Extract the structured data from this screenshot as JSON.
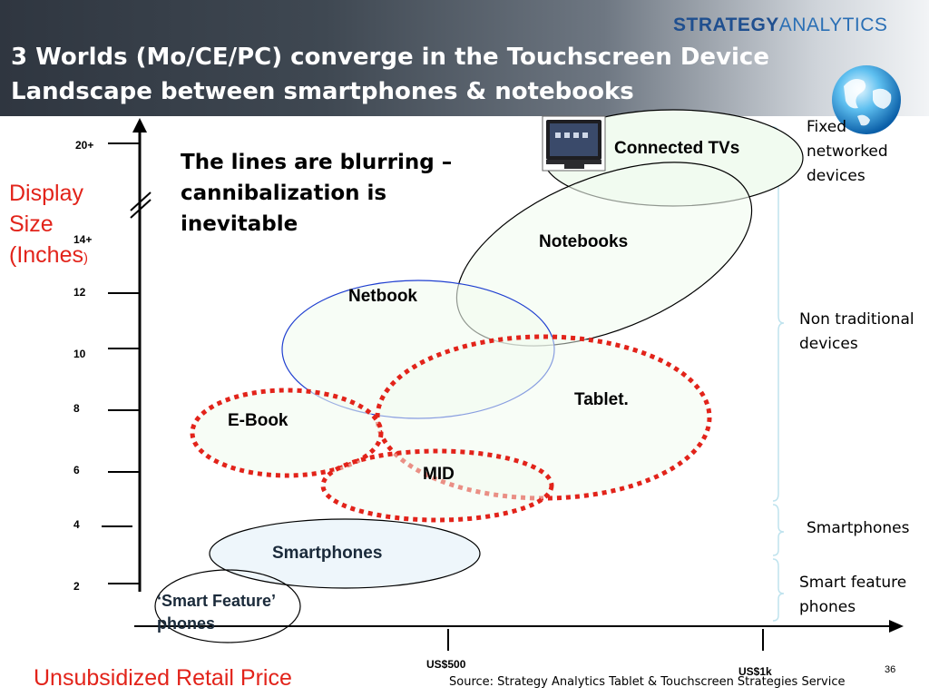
{
  "header": {
    "brand_part1": "STRATEGY",
    "brand_part2": "ANALYTICS",
    "title_line1": "3 Worlds (Mo/CE/PC) converge in the Touchscreen  Device",
    "title_line2": "Landscape between smartphones & notebooks"
  },
  "axes": {
    "y_label_main": "Display Size (Inches",
    "y_label_paren": ")",
    "x_label": "Unsubsidized Retail Price",
    "y_ticks": [
      "20+",
      "14+",
      "12",
      "10",
      "8",
      "6",
      "4",
      "2"
    ],
    "x_ticks": [
      "US$500",
      "US$1k"
    ]
  },
  "note": "The lines are blurring – cannibalization is inevitable",
  "bubbles": {
    "connected_tvs": "Connected TVs",
    "notebooks": "Notebooks",
    "netbook": "Netbook",
    "tablet": "Tablet.",
    "ebook": "E-Book",
    "mid": "MID",
    "smartphones": "Smartphones",
    "smart_feature_phones": "‘Smart Feature’ phones"
  },
  "side_groups": {
    "fixed": "Fixed networked devices",
    "non_traditional": "Non traditional devices",
    "smartphones": "Smartphones",
    "smart_feature": "Smart feature phones"
  },
  "footer": {
    "source": "Source: Strategy Analytics Tablet & Touchscreen Strategies Service",
    "page_number": "36"
  },
  "colors": {
    "red": "#e2231a",
    "blue_outline": "#1f3fd0",
    "bubble_fill": "#f1fbf0",
    "bracket": "#bfe3ee"
  },
  "icons": [
    "globe-icon",
    "television-icon"
  ]
}
